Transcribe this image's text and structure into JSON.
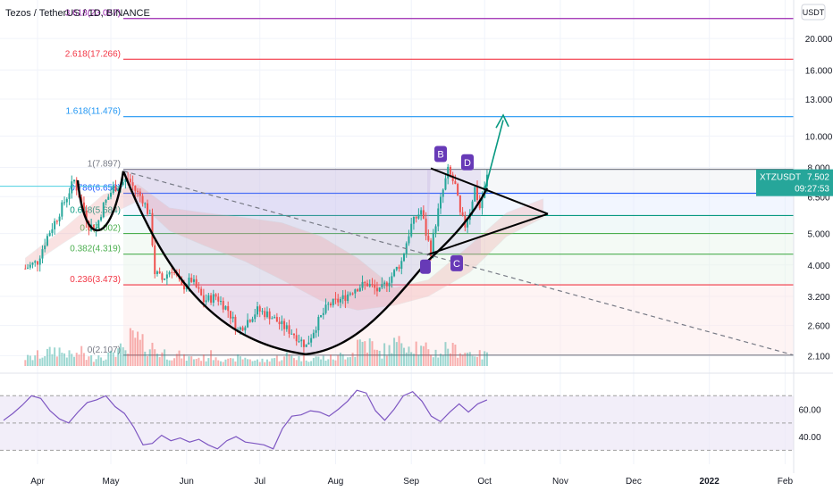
{
  "header": {
    "pair": "Tezos / TetherUS",
    "interval": "1D",
    "exchange": "BINANCE",
    "currency_button": "USDT"
  },
  "price_tag": {
    "symbol": "XTZUSDT",
    "last_price": "7.502",
    "countdown": "09:27:53",
    "color": "#26a69a"
  },
  "colors": {
    "up": "#26a69a",
    "down": "#ef5350",
    "rsi": "#7e57c2",
    "pattern_line": "#000000",
    "projection_arrow": "#089981"
  },
  "chart_data": [
    {
      "type": "candlestick",
      "symbol": "XTZUSDT",
      "interval": "1D",
      "y_scale": "log",
      "ylim": [
        1.95,
        25.0
      ],
      "yticks": [
        "2.100",
        "2.600",
        "3.200",
        "4.000",
        "5.000",
        "6.500",
        "8.000",
        "10.000",
        "13.000",
        "16.000",
        "20.000"
      ],
      "xticks": [
        "Apr",
        "May",
        "Jun",
        "Jul",
        "Aug",
        "Sep",
        "Oct",
        "Nov",
        "Dec",
        "2022",
        "Feb"
      ],
      "close_path": [
        [
          "2021-03-27",
          3.9
        ],
        [
          "2021-04-01",
          4.1
        ],
        [
          "2021-04-05",
          4.9
        ],
        [
          "2021-04-09",
          5.6
        ],
        [
          "2021-04-13",
          6.5
        ],
        [
          "2021-04-16",
          7.3
        ],
        [
          "2021-04-19",
          6.2
        ],
        [
          "2021-04-22",
          5.3
        ],
        [
          "2021-04-25",
          5.2
        ],
        [
          "2021-04-28",
          6.1
        ],
        [
          "2021-05-02",
          6.9
        ],
        [
          "2021-05-05",
          7.1
        ],
        [
          "2021-05-08",
          7.4
        ],
        [
          "2021-05-11",
          6.8
        ],
        [
          "2021-05-14",
          6.4
        ],
        [
          "2021-05-17",
          5.6
        ],
        [
          "2021-05-19",
          3.8
        ],
        [
          "2021-05-22",
          3.6
        ],
        [
          "2021-05-26",
          3.9
        ],
        [
          "2021-05-30",
          3.4
        ],
        [
          "2021-06-03",
          3.6
        ],
        [
          "2021-06-08",
          3.1
        ],
        [
          "2021-06-13",
          3.2
        ],
        [
          "2021-06-18",
          2.9
        ],
        [
          "2021-06-22",
          2.5
        ],
        [
          "2021-06-26",
          2.7
        ],
        [
          "2021-06-30",
          2.9
        ],
        [
          "2021-07-05",
          2.8
        ],
        [
          "2021-07-10",
          2.6
        ],
        [
          "2021-07-15",
          2.45
        ],
        [
          "2021-07-20",
          2.25
        ],
        [
          "2021-07-24",
          2.6
        ],
        [
          "2021-07-29",
          3.0
        ],
        [
          "2021-08-04",
          3.15
        ],
        [
          "2021-08-09",
          3.4
        ],
        [
          "2021-08-14",
          3.5
        ],
        [
          "2021-08-19",
          3.3
        ],
        [
          "2021-08-24",
          3.7
        ],
        [
          "2021-08-28",
          4.1
        ],
        [
          "2021-09-01",
          5.3
        ],
        [
          "2021-09-05",
          5.9
        ],
        [
          "2021-09-07",
          5.0
        ],
        [
          "2021-09-09",
          4.4
        ],
        [
          "2021-09-11",
          5.4
        ],
        [
          "2021-09-14",
          6.8
        ],
        [
          "2021-09-16",
          7.8
        ],
        [
          "2021-09-19",
          7.0
        ],
        [
          "2021-09-21",
          5.7
        ],
        [
          "2021-09-23",
          5.3
        ],
        [
          "2021-09-25",
          5.9
        ],
        [
          "2021-09-27",
          6.9
        ],
        [
          "2021-09-29",
          6.0
        ],
        [
          "2021-10-01",
          6.9
        ],
        [
          "2021-10-02",
          7.502
        ]
      ],
      "volume_relative": [
        0.3,
        0.4,
        0.5,
        0.6,
        0.5,
        0.4,
        0.5,
        0.3,
        0.4,
        0.4,
        0.6,
        0.5,
        1.0,
        0.8,
        0.7,
        0.5,
        0.4,
        0.4,
        0.3,
        0.3,
        0.3,
        0.4,
        0.3,
        0.2,
        0.3,
        0.3,
        0.2,
        0.2,
        0.3,
        0.3,
        0.4,
        0.3,
        0.3,
        0.3,
        0.3,
        0.3,
        0.4,
        0.5,
        0.9,
        0.8,
        0.5,
        0.6,
        0.8,
        1.0,
        0.8,
        0.6,
        0.5,
        0.5,
        0.7,
        0.6,
        0.5,
        0.5,
        0.4,
        0.6
      ],
      "fibonacci_levels": [
        {
          "label": "0(2.107)",
          "value": 2.107,
          "color": "#787b86"
        },
        {
          "label": "0.236(3.473)",
          "value": 3.473,
          "color": "#f23645"
        },
        {
          "label": "0.382(4.319)",
          "value": 4.319,
          "color": "#4caf50"
        },
        {
          "label": "0.5(5.002)",
          "value": 5.002,
          "color": "#4caf50"
        },
        {
          "label": "0.618(5.684)",
          "value": 5.684,
          "color": "#089981"
        },
        {
          "label": "0.786(6.658)",
          "value": 6.658,
          "color": "#2962ff"
        },
        {
          "label": "1(7.897)",
          "value": 7.897,
          "color": "#787b86"
        },
        {
          "label": "1.618(11.476)",
          "value": 11.476,
          "color": "#2196f3"
        },
        {
          "label": "2.618(17.266)",
          "value": 17.266,
          "color": "#f23645"
        },
        {
          "label": "3.618(23.057)",
          "value": 23.057,
          "color": "#9c27b0"
        }
      ],
      "pattern_labels": [
        "B",
        "D",
        "C"
      ],
      "pattern_label_color": "#673ab7"
    },
    {
      "type": "line",
      "name": "RSI",
      "ylim": [
        25,
        80
      ],
      "yticks": [
        "60.00",
        "40.00"
      ],
      "band_levels": [
        30,
        50,
        70
      ],
      "values": [
        52,
        57,
        63,
        70,
        68,
        59,
        53,
        50,
        58,
        65,
        67,
        70,
        62,
        57,
        47,
        34,
        35,
        41,
        37,
        39,
        36,
        38,
        34,
        31,
        37,
        40,
        36,
        35,
        34,
        31,
        46,
        55,
        56,
        59,
        58,
        55,
        60,
        66,
        74,
        72,
        59,
        52,
        60,
        70,
        73,
        66,
        55,
        51,
        58,
        64,
        58,
        64,
        67
      ]
    }
  ]
}
